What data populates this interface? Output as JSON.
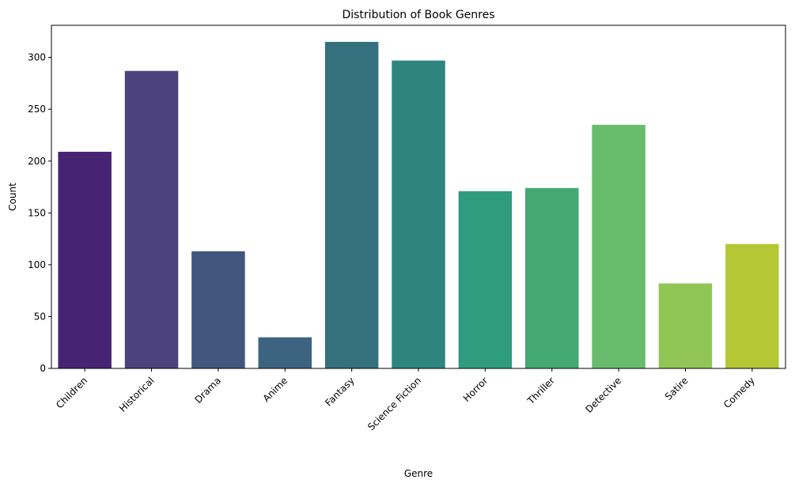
{
  "chart_data": {
    "type": "bar",
    "title": "Distribution of Book Genres",
    "xlabel": "Genre",
    "ylabel": "Count",
    "categories": [
      "Children",
      "Historical",
      "Drama",
      "Anime",
      "Fantasy",
      "Science Fiction",
      "Horror",
      "Thriller",
      "Detective",
      "Satire",
      "Comedy"
    ],
    "values": [
      209,
      287,
      113,
      30,
      315,
      297,
      171,
      174,
      235,
      82,
      120
    ],
    "colors": [
      "#482374",
      "#4c437d",
      "#42567e",
      "#3c6480",
      "#35707e",
      "#2e857f",
      "#2f9c7f",
      "#44a872",
      "#69bc6c",
      "#8fc656",
      "#b5c734"
    ],
    "ylim": [
      0,
      331
    ],
    "yticks": [
      0,
      50,
      100,
      150,
      200,
      250,
      300
    ],
    "grid": false,
    "legend": "none"
  }
}
